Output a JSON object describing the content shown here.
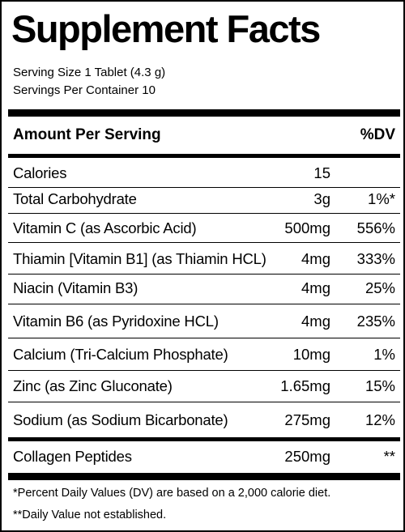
{
  "title": "Supplement Facts",
  "serving_size": "Serving Size 1 Tablet (4.3 g)",
  "servings_per_container": "Servings Per Container 10",
  "header": {
    "amount_per_serving": "Amount Per Serving",
    "dv": "%DV"
  },
  "rows": [
    {
      "name": "Calories",
      "amount": "15",
      "dv": ""
    },
    {
      "name": "Total Carbohydrate",
      "amount": "3g",
      "dv": "1%*"
    },
    {
      "name": "Vitamin C (as Ascorbic Acid)",
      "amount": "500mg",
      "dv": "556%"
    },
    {
      "name": "Thiamin [Vitamin B1] (as Thiamin HCL)",
      "amount": "4mg",
      "dv": "333%"
    },
    {
      "name": "Niacin (Vitamin B3)",
      "amount": "4mg",
      "dv": "25%"
    },
    {
      "name": "Vitamin B6 (as Pyridoxine HCL)",
      "amount": "4mg",
      "dv": "235%"
    },
    {
      "name": "Calcium (Tri-Calcium Phosphate)",
      "amount": "10mg",
      "dv": "1%"
    },
    {
      "name": "Zinc (as Zinc Gluconate)",
      "amount": "1.65mg",
      "dv": "15%"
    },
    {
      "name": "Sodium (as Sodium Bicarbonate)",
      "amount": "275mg",
      "dv": "12%"
    },
    {
      "name": "Collagen Peptides",
      "amount": "250mg",
      "dv": "**"
    }
  ],
  "footnotes": {
    "percent_dv": "*Percent Daily Values (DV) are based on a 2,000 calorie diet.",
    "not_established": "**Daily Value not established."
  }
}
